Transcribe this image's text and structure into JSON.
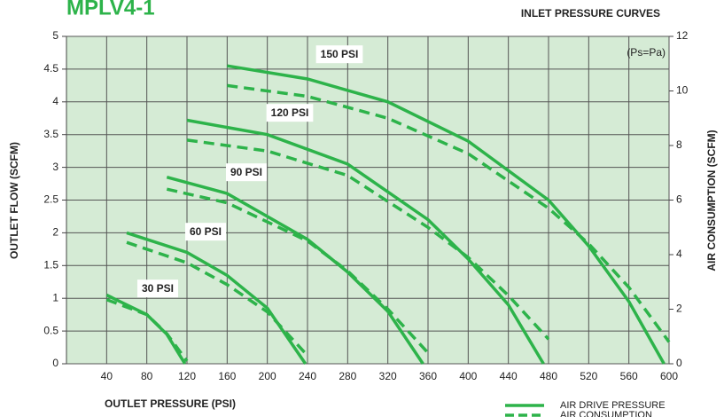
{
  "chart_data": {
    "type": "line",
    "title": "MPLV4-1",
    "subtitle": "INLET PRESSURE CURVES",
    "annotation": "(Ps=Pa)",
    "x_label": "OUTLET PRESSURE (PSI)",
    "y_label": "OUTLET FLOW (SCFM)",
    "y2_label": "AIR CONSUMPTION (SCFM)",
    "xlim": [
      0,
      600
    ],
    "xticks": [
      40,
      80,
      120,
      160,
      200,
      240,
      280,
      320,
      360,
      400,
      440,
      480,
      520,
      560,
      600
    ],
    "ylim": [
      0,
      5
    ],
    "yticks": [
      0,
      0.5,
      1,
      1.5,
      2,
      2.5,
      3,
      3.5,
      4,
      4.5,
      5
    ],
    "y2lim": [
      0,
      12
    ],
    "y2ticks": [
      0,
      2,
      4,
      6,
      8,
      10,
      12
    ],
    "grid": true,
    "color": "#2db34a",
    "background": "#d5ebd5",
    "legend": [
      {
        "name": "AIR DRIVE PRESSURE",
        "style": "solid"
      },
      {
        "name": "AIR CONSUMPTION",
        "style": "dashed",
        "axis": "y2"
      }
    ],
    "curves": [
      {
        "label": "150 PSI",
        "pressure": {
          "x": [
            160,
            240,
            320,
            400,
            480,
            520,
            560,
            595
          ],
          "values": [
            4.55,
            4.35,
            4.0,
            3.4,
            2.5,
            1.8,
            0.95,
            0
          ]
        },
        "consumption": {
          "x": [
            160,
            240,
            320,
            400,
            480,
            520,
            560,
            600
          ],
          "values": [
            10.2,
            9.8,
            9.0,
            7.7,
            5.7,
            4.4,
            2.8,
            0.8
          ]
        }
      },
      {
        "label": "120 PSI",
        "pressure": {
          "x": [
            120,
            200,
            280,
            360,
            400,
            440,
            475
          ],
          "values": [
            3.72,
            3.5,
            3.05,
            2.2,
            1.6,
            0.9,
            0
          ]
        },
        "consumption": {
          "x": [
            120,
            200,
            280,
            360,
            400,
            440,
            480
          ],
          "values": [
            8.2,
            7.8,
            6.9,
            5.0,
            3.9,
            2.5,
            0.9
          ]
        }
      },
      {
        "label": "90 PSI",
        "pressure": {
          "x": [
            100,
            160,
            240,
            280,
            320,
            355
          ],
          "values": [
            2.85,
            2.6,
            1.9,
            1.4,
            0.8,
            0
          ]
        },
        "consumption": {
          "x": [
            100,
            160,
            240,
            280,
            320,
            360
          ],
          "values": [
            6.4,
            5.9,
            4.5,
            3.4,
            2.0,
            0.4
          ]
        }
      },
      {
        "label": "60 PSI",
        "pressure": {
          "x": [
            60,
            120,
            160,
            200,
            238
          ],
          "values": [
            2.0,
            1.7,
            1.35,
            0.85,
            0
          ]
        },
        "consumption": {
          "x": [
            60,
            120,
            160,
            200,
            240
          ],
          "values": [
            4.45,
            3.7,
            2.9,
            1.9,
            0.3
          ]
        }
      },
      {
        "label": "30 PSI",
        "pressure": {
          "x": [
            40,
            80,
            100,
            118
          ],
          "values": [
            1.05,
            0.75,
            0.45,
            0
          ]
        },
        "consumption": {
          "x": [
            40,
            80,
            100,
            120
          ],
          "values": [
            2.35,
            1.8,
            1.1,
            0.1
          ]
        }
      }
    ]
  }
}
